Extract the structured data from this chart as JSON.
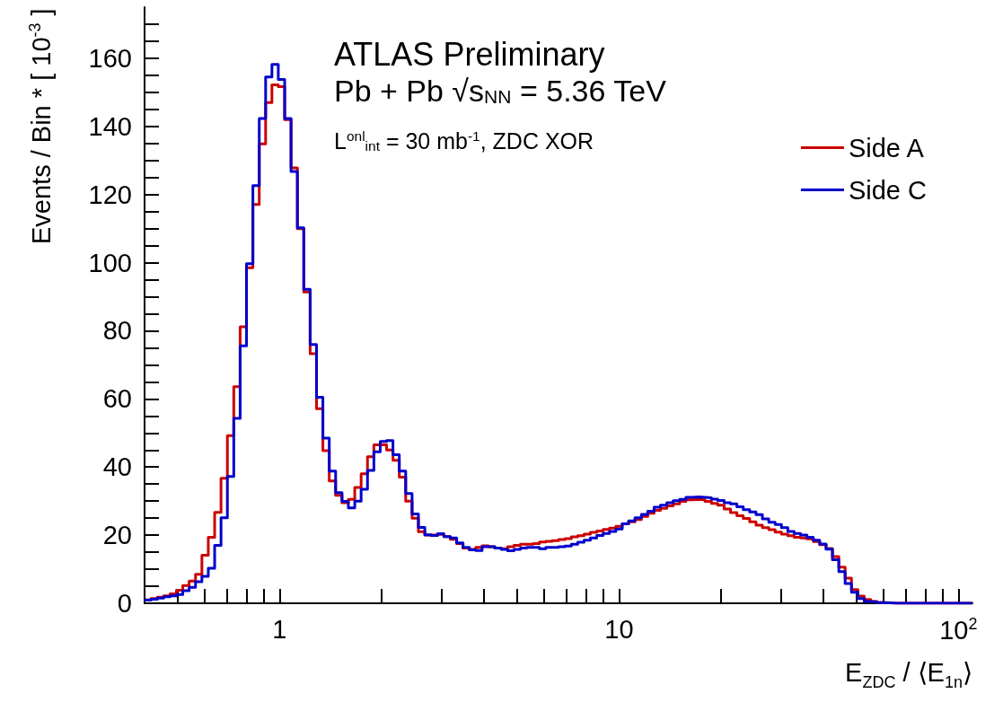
{
  "chart_data": {
    "type": "histogram",
    "xlabel": "E$_{ZDC}$ / ⟨E$_{1n}$⟩",
    "ylabel": "Events / Bin * [ 10$^{-3}$ ]",
    "annotations": [
      "ATLAS Preliminary",
      "Pb + Pb √s$_{NN}$ = 5.36 TeV",
      "L$^{onl}$$_{int}$ = 30 mb$^{-1}$, ZDC XOR"
    ],
    "log": "x",
    "grid": false,
    "legend": "top right",
    "xlim": [
      0.4,
      110
    ],
    "ylim": [
      0,
      175
    ],
    "xticks": [
      {
        "value": 0.5,
        "label": null
      },
      {
        "value": 0.6,
        "label": null
      },
      {
        "value": 0.7,
        "label": null
      },
      {
        "value": 0.8,
        "label": null
      },
      {
        "value": 0.9,
        "label": null
      },
      {
        "value": 1,
        "label": "1"
      },
      {
        "value": 2,
        "label": null
      },
      {
        "value": 3,
        "label": null
      },
      {
        "value": 4,
        "label": null
      },
      {
        "value": 5,
        "label": null
      },
      {
        "value": 6,
        "label": null
      },
      {
        "value": 7,
        "label": null
      },
      {
        "value": 8,
        "label": null
      },
      {
        "value": 9,
        "label": null
      },
      {
        "value": 10,
        "label": "10"
      },
      {
        "value": 20,
        "label": null
      },
      {
        "value": 30,
        "label": null
      },
      {
        "value": 40,
        "label": null
      },
      {
        "value": 50,
        "label": null
      },
      {
        "value": 60,
        "label": null
      },
      {
        "value": 70,
        "label": null
      },
      {
        "value": 80,
        "label": null
      },
      {
        "value": 90,
        "label": null
      },
      {
        "value": 100,
        "label": "10$^{2}$"
      }
    ],
    "yticks": [
      0,
      {
        "value": 5,
        "label": null
      },
      {
        "value": 10,
        "label": null
      },
      {
        "value": 15,
        "label": null
      },
      20,
      {
        "value": 25,
        "label": null
      },
      {
        "value": 30,
        "label": null
      },
      {
        "value": 35,
        "label": null
      },
      40,
      {
        "value": 45,
        "label": null
      },
      {
        "value": 50,
        "label": null
      },
      {
        "value": 55,
        "label": null
      },
      60,
      {
        "value": 65,
        "label": null
      },
      {
        "value": 70,
        "label": null
      },
      {
        "value": 75,
        "label": null
      },
      80,
      {
        "value": 85,
        "label": null
      },
      {
        "value": 90,
        "label": null
      },
      {
        "value": 95,
        "label": null
      },
      100,
      {
        "value": 105,
        "label": null
      },
      {
        "value": 110,
        "label": null
      },
      {
        "value": 115,
        "label": null
      },
      120,
      {
        "value": 125,
        "label": null
      },
      {
        "value": 130,
        "label": null
      },
      {
        "value": 135,
        "label": null
      },
      140,
      {
        "value": 145,
        "label": null
      },
      {
        "value": 150,
        "label": null
      },
      {
        "value": 155,
        "label": null
      },
      160,
      {
        "value": 165,
        "label": null
      },
      {
        "value": 170,
        "label": null
      }
    ],
    "bins": [
      0.4,
      0.4177,
      0.4361,
      0.4554,
      0.4755,
      0.4965,
      0.5184,
      0.5413,
      0.5652,
      0.5902,
      0.6163,
      0.6435,
      0.6719,
      0.7016,
      0.7326,
      0.765,
      0.7988,
      0.8341,
      0.8709,
      0.9094,
      0.9491,
      0.991,
      1.0348,
      1.0805,
      1.1282,
      1.178,
      1.2301,
      1.2844,
      1.3411,
      1.4004,
      1.4622,
      1.5268,
      1.5943,
      1.6647,
      1.7382,
      1.815,
      1.8952,
      1.9789,
      2.0663,
      2.1576,
      2.252,
      2.352,
      2.456,
      2.564,
      2.678,
      2.796,
      2.919,
      3.048,
      3.183,
      3.324,
      3.47,
      3.623,
      3.783,
      3.95,
      4.125,
      4.307,
      4.497,
      4.696,
      4.903,
      5.12,
      5.345,
      5.581,
      5.828,
      6.085,
      6.354,
      6.635,
      6.928,
      7.234,
      7.554,
      7.888,
      8.233,
      8.597,
      8.977,
      9.373,
      9.787,
      10.22,
      10.67,
      11.14,
      11.64,
      12.15,
      12.68,
      13.24,
      13.83,
      14.44,
      15.08,
      15.74,
      16.44,
      17.16,
      17.92,
      18.72,
      19.54,
      20.41,
      21.31,
      22.25,
      23.23,
      24.26,
      25.33,
      26.45,
      27.62,
      28.84,
      30.1,
      31.43,
      32.82,
      34.27,
      35.79,
      37.37,
      39.02,
      40.74,
      42.54,
      44.42,
      46.36,
      48.41,
      50.55,
      52.78,
      55.11,
      57.55,
      60.09,
      62.74,
      65.51,
      68.41,
      71.41,
      74.57,
      77.86,
      81.3,
      84.89,
      88.64,
      92.56,
      96.65,
      100.9,
      105.4,
      110
    ],
    "series": [
      {
        "name": "Side A",
        "color": "#cc0000",
        "values": [
          1.0,
          1.4,
          1.8,
          2.2,
          2.8,
          3.8,
          5.2,
          6.5,
          8.5,
          14.1,
          19.4,
          26.7,
          36.7,
          49.2,
          63.6,
          81.2,
          98.5,
          117.1,
          134.9,
          147.0,
          152.2,
          151.7,
          142.0,
          127.8,
          110.0,
          91.4,
          73.3,
          57.1,
          44.8,
          35.9,
          31.7,
          29.5,
          30.5,
          34.0,
          38,
          43,
          46.5,
          46.5,
          45,
          42,
          37,
          30,
          25,
          21,
          20,
          20,
          20.2,
          19.6,
          18.8,
          17.5,
          16.2,
          15.8,
          16.4,
          16.9,
          16.6,
          16.2,
          16.0,
          16.6,
          17.0,
          17.3,
          17.3,
          17.5,
          18.0,
          18.2,
          18.4,
          18.7,
          19.0,
          19.5,
          19.8,
          20.3,
          20.8,
          21.2,
          21.7,
          22.1,
          22.6,
          23.3,
          23.9,
          24.6,
          25.5,
          26.4,
          27.3,
          27.9,
          28.6,
          29.2,
          29.9,
          30.4,
          30.5,
          30.4,
          29.9,
          29.3,
          28.8,
          27.7,
          26.6,
          25.7,
          24.9,
          23.9,
          22.9,
          22.2,
          21.6,
          20.9,
          20.3,
          19.8,
          19.4,
          19.2,
          18.9,
          18.1,
          17.2,
          16.1,
          13.7,
          10.6,
          7.4,
          4.0,
          2.1,
          1.1,
          0.5,
          0.2,
          0.1,
          0,
          0,
          0,
          0,
          0,
          0,
          0,
          0,
          0,
          0,
          0,
          0,
          0
        ]
      },
      {
        "name": "Side C",
        "color": "#0000cc",
        "values": [
          0.9,
          1.2,
          1.5,
          1.9,
          2.2,
          2.6,
          3.7,
          4.7,
          6.3,
          7.9,
          10.3,
          17.0,
          25.1,
          37.2,
          54.3,
          75.6,
          99.7,
          122.6,
          142.3,
          154.5,
          158.2,
          153.8,
          142.3,
          126.8,
          110.2,
          92.2,
          76.0,
          60.5,
          48.5,
          38.8,
          32.5,
          29.9,
          28.0,
          30.0,
          33.5,
          39,
          44.5,
          47.5,
          47.8,
          43.6,
          38.8,
          32.2,
          26.2,
          22.3,
          20.1,
          19.9,
          20.4,
          19.6,
          19.2,
          17.7,
          16.4,
          15.7,
          15.5,
          16.6,
          16.6,
          16.2,
          15.8,
          15.4,
          15.8,
          16.2,
          16.4,
          16.4,
          16.0,
          16.4,
          16.4,
          16.6,
          16.8,
          17.3,
          17.9,
          18.5,
          19.2,
          19.9,
          20.5,
          21.1,
          21.8,
          23.3,
          24.2,
          25.1,
          26.1,
          27.0,
          28.2,
          28.8,
          29.5,
          30.1,
          30.5,
          31.1,
          31.2,
          31.1,
          31.0,
          30.6,
          30.2,
          29.5,
          29.2,
          28.3,
          27.5,
          26.8,
          26.0,
          24.8,
          23.8,
          23.1,
          22.2,
          21.1,
          20.5,
          20.0,
          19.4,
          18.5,
          17.4,
          15.9,
          12.8,
          9.3,
          5.8,
          3.2,
          1.4,
          0.5,
          0.4,
          0.2,
          0.1,
          0,
          0,
          0,
          0,
          0,
          0,
          0,
          0,
          0,
          0,
          0,
          0,
          0
        ]
      }
    ]
  }
}
